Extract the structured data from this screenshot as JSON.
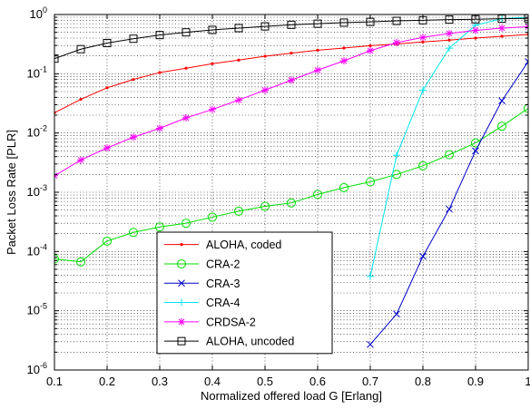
{
  "chart_data": {
    "type": "line",
    "xlabel": "Normalized offered load G [Erlang]",
    "ylabel": "Packet Loss Rate [PLR]",
    "xlim": [
      0.1,
      1.0
    ],
    "ylim": [
      1e-06,
      1
    ],
    "yscale": "log",
    "grid": true,
    "legend_position": "bottom-left",
    "x_ticks": [
      0.1,
      0.2,
      0.3,
      0.4,
      0.5,
      0.6,
      0.7,
      0.8,
      0.9,
      1.0
    ],
    "x_tick_labels": [
      "0.1",
      "0.2",
      "0.3",
      "0.4",
      "0.5",
      "0.6",
      "0.7",
      "0.8",
      "0.9",
      "1"
    ],
    "y_ticks": [
      1e-06,
      1e-05,
      0.0001,
      0.001,
      0.01,
      0.1,
      1
    ],
    "y_tick_labels": [
      {
        "base": "10",
        "exp": "-6"
      },
      {
        "base": "10",
        "exp": "-5"
      },
      {
        "base": "10",
        "exp": "-4"
      },
      {
        "base": "10",
        "exp": "-3"
      },
      {
        "base": "10",
        "exp": "-2"
      },
      {
        "base": "10",
        "exp": "-1"
      },
      {
        "base": "10",
        "exp": "0"
      }
    ],
    "series": [
      {
        "name": "ALOHA, coded",
        "color": "#ff0000",
        "marker": "dot",
        "x": [
          0.1,
          0.15,
          0.2,
          0.25,
          0.3,
          0.35,
          0.4,
          0.45,
          0.5,
          0.55,
          0.6,
          0.65,
          0.7,
          0.75,
          0.8,
          0.85,
          0.9,
          0.95,
          1.0
        ],
        "y": [
          0.022,
          0.037,
          0.058,
          0.08,
          0.105,
          0.124,
          0.148,
          0.17,
          0.198,
          0.223,
          0.25,
          0.272,
          0.298,
          0.318,
          0.345,
          0.37,
          0.4,
          0.43,
          0.46
        ]
      },
      {
        "name": "CRA-2",
        "color": "#00dd00",
        "marker": "circle",
        "x": [
          0.1,
          0.15,
          0.2,
          0.25,
          0.3,
          0.35,
          0.4,
          0.45,
          0.5,
          0.55,
          0.6,
          0.65,
          0.7,
          0.75,
          0.8,
          0.85,
          0.9,
          0.95,
          1.0
        ],
        "y": [
          7.5e-05,
          6.7e-05,
          0.00015,
          0.00021,
          0.00026,
          0.0003,
          0.00038,
          0.00048,
          0.00058,
          0.00066,
          0.00092,
          0.0012,
          0.0015,
          0.002,
          0.0028,
          0.0043,
          0.0068,
          0.013,
          0.026
        ]
      },
      {
        "name": "CRA-3",
        "color": "#0000cc",
        "marker": "x",
        "x": [
          0.7,
          0.75,
          0.8,
          0.85,
          0.9,
          0.95,
          1.0
        ],
        "y": [
          2.7e-06,
          8.8e-06,
          8.3e-05,
          0.00052,
          0.005,
          0.035,
          0.16
        ]
      },
      {
        "name": "CRA-4",
        "color": "#00e5ee",
        "marker": "plus",
        "x": [
          0.7,
          0.75,
          0.8,
          0.85,
          0.9,
          0.95,
          1.0
        ],
        "y": [
          3.8e-05,
          0.0042,
          0.053,
          0.27,
          0.66,
          0.85,
          0.9
        ]
      },
      {
        "name": "CRDSA-2",
        "color": "#ff00ff",
        "marker": "star",
        "x": [
          0.1,
          0.15,
          0.2,
          0.25,
          0.3,
          0.35,
          0.4,
          0.45,
          0.5,
          0.55,
          0.6,
          0.65,
          0.7,
          0.75,
          0.8,
          0.85,
          0.9,
          0.95,
          1.0
        ],
        "y": [
          0.0019,
          0.0035,
          0.0056,
          0.0085,
          0.012,
          0.018,
          0.025,
          0.036,
          0.053,
          0.078,
          0.115,
          0.165,
          0.245,
          0.335,
          0.41,
          0.48,
          0.54,
          0.59,
          0.62
        ]
      },
      {
        "name": "ALOHA, uncoded",
        "color": "#000000",
        "marker": "square",
        "x": [
          0.1,
          0.15,
          0.2,
          0.25,
          0.3,
          0.35,
          0.4,
          0.45,
          0.5,
          0.55,
          0.6,
          0.65,
          0.7,
          0.75,
          0.8,
          0.85,
          0.9,
          0.95,
          1.0
        ],
        "y": [
          0.18,
          0.26,
          0.33,
          0.39,
          0.45,
          0.5,
          0.55,
          0.59,
          0.63,
          0.67,
          0.7,
          0.73,
          0.75,
          0.78,
          0.8,
          0.82,
          0.83,
          0.85,
          0.86
        ]
      }
    ]
  }
}
